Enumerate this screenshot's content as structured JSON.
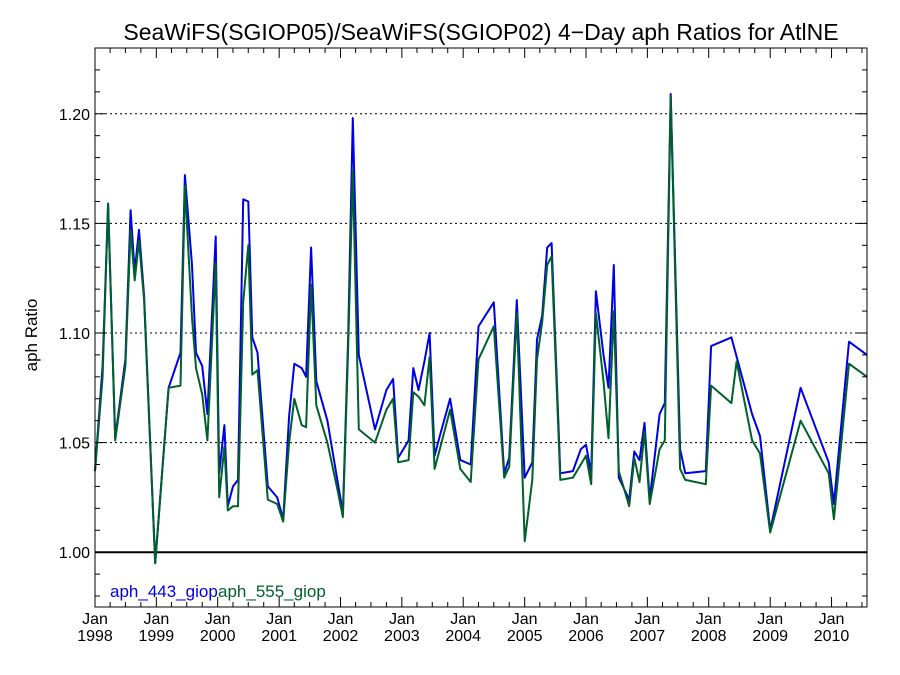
{
  "chart_data": {
    "type": "line",
    "title": "SeaWiFS(SGIOP05)/SeaWiFS(SGIOP02) 4−Day aph Ratios for AtlNE",
    "xlabel": "",
    "ylabel": "aph Ratio",
    "xlim": [
      "1998-01-01",
      "2010-07-31"
    ],
    "ylim": [
      0.975,
      1.23
    ],
    "x_ticks": [
      {
        "month": "Jan",
        "year": "1998",
        "date": "1998-01-01"
      },
      {
        "month": "Jan",
        "year": "1999",
        "date": "1999-01-01"
      },
      {
        "month": "Jan",
        "year": "2000",
        "date": "2000-01-01"
      },
      {
        "month": "Jan",
        "year": "2001",
        "date": "2001-01-01"
      },
      {
        "month": "Jan",
        "year": "2002",
        "date": "2002-01-01"
      },
      {
        "month": "Jan",
        "year": "2003",
        "date": "2003-01-01"
      },
      {
        "month": "Jan",
        "year": "2004",
        "date": "2004-01-01"
      },
      {
        "month": "Jan",
        "year": "2005",
        "date": "2005-01-01"
      },
      {
        "month": "Jan",
        "year": "2006",
        "date": "2006-01-01"
      },
      {
        "month": "Jan",
        "year": "2007",
        "date": "2007-01-01"
      },
      {
        "month": "Jan",
        "year": "2008",
        "date": "2008-01-01"
      },
      {
        "month": "Jan",
        "year": "2009",
        "date": "2009-01-01"
      },
      {
        "month": "Jan",
        "year": "2010",
        "date": "2010-01-01"
      }
    ],
    "y_ticks": [
      {
        "value": 1.0,
        "label": "1.00"
      },
      {
        "value": 1.05,
        "label": "1.05"
      },
      {
        "value": 1.1,
        "label": "1.10"
      },
      {
        "value": 1.15,
        "label": "1.15"
      },
      {
        "value": 1.2,
        "label": "1.20"
      }
    ],
    "grid": "horizontal dotted at labeled y ticks",
    "reference_line": 1.0,
    "legend_position": "bottom-left",
    "series": [
      {
        "name": "aph_443_giop",
        "color": "#0000e6",
        "points": [
          [
            "1998-01-01",
            1.037
          ],
          [
            "1998-02-15",
            1.085
          ],
          [
            "1998-03-20",
            1.159
          ],
          [
            "1998-05-01",
            1.052
          ],
          [
            "1998-07-01",
            1.088
          ],
          [
            "1998-08-01",
            1.156
          ],
          [
            "1998-08-25",
            1.128
          ],
          [
            "1998-09-20",
            1.147
          ],
          [
            "1998-10-20",
            1.117
          ],
          [
            "1998-12-25",
            0.995
          ],
          [
            "1999-03-15",
            1.075
          ],
          [
            "1999-05-25",
            1.091
          ],
          [
            "1999-06-20",
            1.172
          ],
          [
            "1999-08-01",
            1.131
          ],
          [
            "1999-08-25",
            1.091
          ],
          [
            "1999-10-01",
            1.085
          ],
          [
            "1999-11-01",
            1.063
          ],
          [
            "1999-12-20",
            1.144
          ],
          [
            "2000-01-10",
            1.036
          ],
          [
            "2000-02-10",
            1.058
          ],
          [
            "2000-03-01",
            1.021
          ],
          [
            "2000-04-01",
            1.03
          ],
          [
            "2000-05-01",
            1.033
          ],
          [
            "2000-06-01",
            1.161
          ],
          [
            "2000-07-01",
            1.16
          ],
          [
            "2000-07-25",
            1.098
          ],
          [
            "2000-08-25",
            1.091
          ],
          [
            "2000-10-25",
            1.03
          ],
          [
            "2000-12-20",
            1.025
          ],
          [
            "2001-01-25",
            1.015
          ],
          [
            "2001-03-01",
            1.062
          ],
          [
            "2001-04-01",
            1.086
          ],
          [
            "2001-05-15",
            1.084
          ],
          [
            "2001-06-10",
            1.08
          ],
          [
            "2001-07-10",
            1.139
          ],
          [
            "2001-08-10",
            1.078
          ],
          [
            "2001-10-15",
            1.06
          ],
          [
            "2001-12-15",
            1.032
          ],
          [
            "2002-01-15",
            1.018
          ],
          [
            "2002-02-15",
            1.097
          ],
          [
            "2002-03-15",
            1.198
          ],
          [
            "2002-04-20",
            1.09
          ],
          [
            "2002-07-25",
            1.056
          ],
          [
            "2002-10-01",
            1.074
          ],
          [
            "2002-11-10",
            1.079
          ],
          [
            "2002-12-10",
            1.043
          ],
          [
            "2003-02-10",
            1.051
          ],
          [
            "2003-03-10",
            1.084
          ],
          [
            "2003-04-10",
            1.074
          ],
          [
            "2003-05-15",
            1.087
          ],
          [
            "2003-06-15",
            1.1
          ],
          [
            "2003-07-15",
            1.044
          ],
          [
            "2003-08-15",
            1.053
          ],
          [
            "2003-10-15",
            1.07
          ],
          [
            "2003-12-15",
            1.042
          ],
          [
            "2004-02-15",
            1.04
          ],
          [
            "2004-04-01",
            1.103
          ],
          [
            "2004-07-01",
            1.114
          ],
          [
            "2004-09-01",
            1.036
          ],
          [
            "2004-10-01",
            1.043
          ],
          [
            "2004-11-15",
            1.115
          ],
          [
            "2005-01-01",
            1.034
          ],
          [
            "2005-02-15",
            1.041
          ],
          [
            "2005-03-15",
            1.097
          ],
          [
            "2005-04-15",
            1.108
          ],
          [
            "2005-05-15",
            1.139
          ],
          [
            "2005-06-10",
            1.141
          ],
          [
            "2005-08-01",
            1.036
          ],
          [
            "2005-10-15",
            1.037
          ],
          [
            "2005-12-01",
            1.047
          ],
          [
            "2006-01-01",
            1.049
          ],
          [
            "2006-02-01",
            1.036
          ],
          [
            "2006-03-01",
            1.119
          ],
          [
            "2006-04-15",
            1.09
          ],
          [
            "2006-05-15",
            1.075
          ],
          [
            "2006-06-15",
            1.131
          ],
          [
            "2006-07-15",
            1.034
          ],
          [
            "2006-09-15",
            1.024
          ],
          [
            "2006-10-15",
            1.046
          ],
          [
            "2006-11-15",
            1.042
          ],
          [
            "2006-12-15",
            1.059
          ],
          [
            "2007-01-15",
            1.024
          ],
          [
            "2007-03-15",
            1.063
          ],
          [
            "2007-04-15",
            1.068
          ],
          [
            "2007-05-20",
            1.209
          ],
          [
            "2007-07-15",
            1.047
          ],
          [
            "2007-08-15",
            1.036
          ],
          [
            "2007-12-15",
            1.037
          ],
          [
            "2008-01-15",
            1.094
          ],
          [
            "2008-05-15",
            1.098
          ],
          [
            "2008-09-15",
            1.063
          ],
          [
            "2008-11-01",
            1.053
          ],
          [
            "2009-01-01",
            1.01
          ],
          [
            "2009-07-01",
            1.075
          ],
          [
            "2009-12-15",
            1.041
          ],
          [
            "2010-01-15",
            1.022
          ],
          [
            "2010-04-15",
            1.096
          ],
          [
            "2010-07-31",
            1.09
          ]
        ]
      },
      {
        "name": "aph_555_giop",
        "color": "#00602a",
        "points": [
          [
            "1998-01-01",
            1.037
          ],
          [
            "1998-02-15",
            1.08
          ],
          [
            "1998-03-20",
            1.159
          ],
          [
            "1998-05-01",
            1.051
          ],
          [
            "1998-07-01",
            1.085
          ],
          [
            "1998-08-01",
            1.147
          ],
          [
            "1998-08-25",
            1.124
          ],
          [
            "1998-09-20",
            1.142
          ],
          [
            "1998-10-20",
            1.115
          ],
          [
            "1998-12-25",
            0.995
          ],
          [
            "1999-03-15",
            1.075
          ],
          [
            "1999-05-25",
            1.076
          ],
          [
            "1999-06-20",
            1.167
          ],
          [
            "1999-08-01",
            1.107
          ],
          [
            "1999-08-25",
            1.084
          ],
          [
            "1999-10-01",
            1.072
          ],
          [
            "1999-11-01",
            1.051
          ],
          [
            "1999-12-20",
            1.132
          ],
          [
            "2000-01-10",
            1.025
          ],
          [
            "2000-02-10",
            1.048
          ],
          [
            "2000-03-01",
            1.019
          ],
          [
            "2000-04-01",
            1.021
          ],
          [
            "2000-05-01",
            1.021
          ],
          [
            "2000-06-01",
            1.114
          ],
          [
            "2000-07-01",
            1.14
          ],
          [
            "2000-07-25",
            1.081
          ],
          [
            "2000-08-25",
            1.083
          ],
          [
            "2000-10-25",
            1.024
          ],
          [
            "2000-12-20",
            1.022
          ],
          [
            "2001-01-25",
            1.014
          ],
          [
            "2001-03-01",
            1.05
          ],
          [
            "2001-04-01",
            1.07
          ],
          [
            "2001-05-15",
            1.058
          ],
          [
            "2001-06-10",
            1.057
          ],
          [
            "2001-07-10",
            1.122
          ],
          [
            "2001-08-10",
            1.067
          ],
          [
            "2001-10-15",
            1.05
          ],
          [
            "2001-12-15",
            1.028
          ],
          [
            "2002-01-15",
            1.016
          ],
          [
            "2002-02-15",
            1.092
          ],
          [
            "2002-03-15",
            1.174
          ],
          [
            "2002-04-20",
            1.056
          ],
          [
            "2002-07-25",
            1.05
          ],
          [
            "2002-10-01",
            1.065
          ],
          [
            "2002-11-10",
            1.07
          ],
          [
            "2002-12-10",
            1.041
          ],
          [
            "2003-02-10",
            1.042
          ],
          [
            "2003-03-10",
            1.073
          ],
          [
            "2003-04-10",
            1.071
          ],
          [
            "2003-05-15",
            1.067
          ],
          [
            "2003-06-15",
            1.089
          ],
          [
            "2003-07-15",
            1.038
          ],
          [
            "2003-08-15",
            1.047
          ],
          [
            "2003-10-15",
            1.065
          ],
          [
            "2003-12-15",
            1.038
          ],
          [
            "2004-02-15",
            1.032
          ],
          [
            "2004-04-01",
            1.088
          ],
          [
            "2004-07-01",
            1.103
          ],
          [
            "2004-09-01",
            1.034
          ],
          [
            "2004-10-01",
            1.039
          ],
          [
            "2004-11-15",
            1.109
          ],
          [
            "2005-01-01",
            1.005
          ],
          [
            "2005-02-15",
            1.033
          ],
          [
            "2005-03-15",
            1.088
          ],
          [
            "2005-04-15",
            1.105
          ],
          [
            "2005-05-15",
            1.131
          ],
          [
            "2005-06-10",
            1.135
          ],
          [
            "2005-08-01",
            1.033
          ],
          [
            "2005-10-15",
            1.034
          ],
          [
            "2005-12-01",
            1.04
          ],
          [
            "2006-01-01",
            1.044
          ],
          [
            "2006-02-01",
            1.031
          ],
          [
            "2006-03-01",
            1.109
          ],
          [
            "2006-04-15",
            1.078
          ],
          [
            "2006-05-15",
            1.052
          ],
          [
            "2006-06-15",
            1.11
          ],
          [
            "2006-07-15",
            1.037
          ],
          [
            "2006-09-15",
            1.021
          ],
          [
            "2006-10-15",
            1.043
          ],
          [
            "2006-11-15",
            1.032
          ],
          [
            "2006-12-15",
            1.055
          ],
          [
            "2007-01-15",
            1.022
          ],
          [
            "2007-03-15",
            1.047
          ],
          [
            "2007-04-15",
            1.051
          ],
          [
            "2007-05-20",
            1.208
          ],
          [
            "2007-07-15",
            1.038
          ],
          [
            "2007-08-15",
            1.033
          ],
          [
            "2007-12-15",
            1.031
          ],
          [
            "2008-01-15",
            1.076
          ],
          [
            "2008-05-15",
            1.068
          ],
          [
            "2008-06-15",
            1.087
          ],
          [
            "2008-09-15",
            1.051
          ],
          [
            "2008-11-01",
            1.045
          ],
          [
            "2009-01-01",
            1.009
          ],
          [
            "2009-07-01",
            1.06
          ],
          [
            "2009-12-15",
            1.036
          ],
          [
            "2010-01-15",
            1.015
          ],
          [
            "2010-04-15",
            1.086
          ],
          [
            "2010-07-31",
            1.08
          ]
        ]
      }
    ]
  }
}
